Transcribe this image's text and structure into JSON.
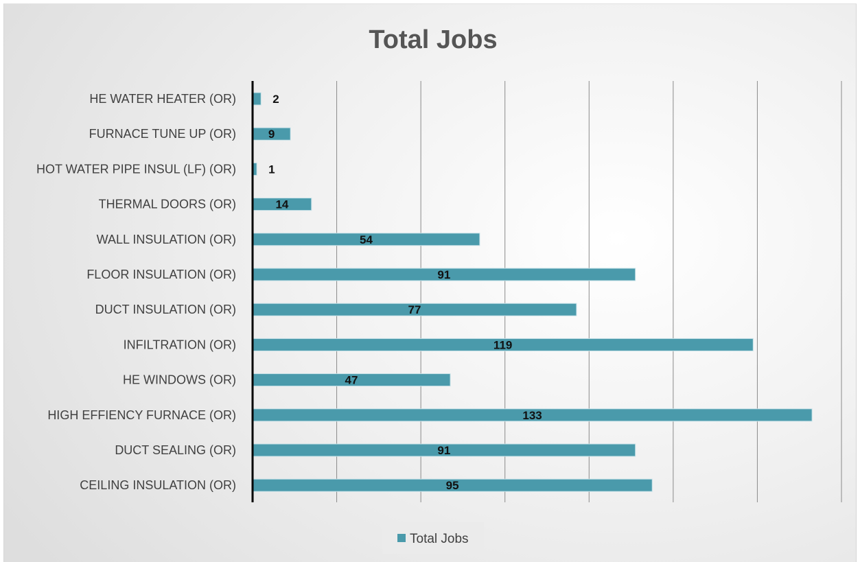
{
  "chart_data": {
    "type": "bar",
    "orientation": "horizontal",
    "title": "Total Jobs",
    "categories": [
      "HE WATER HEATER (OR)",
      "FURNACE TUNE UP (OR)",
      "HOT WATER PIPE INSUL (LF) (OR)",
      "THERMAL DOORS (OR)",
      "WALL INSULATION (OR)",
      "FLOOR INSULATION (OR)",
      "DUCT INSULATION (OR)",
      "INFILTRATION (OR)",
      "HE WINDOWS (OR)",
      "HIGH EFFIENCY FURNACE (OR)",
      "DUCT SEALING (OR)",
      "CEILING INSULATION (OR)"
    ],
    "series": [
      {
        "name": "Total Jobs",
        "values": [
          2,
          9,
          1,
          14,
          54,
          91,
          77,
          119,
          47,
          133,
          91,
          95
        ],
        "color": "#4a9aab"
      }
    ],
    "xlim": [
      0,
      140
    ],
    "x_gridline_step": 20,
    "x_tick_labels_shown": false,
    "grid": true,
    "data_labels": true,
    "legend": "bottom"
  },
  "colors": {
    "bar": "#4a9aab",
    "bar_edge": "#c7e2e8",
    "gridline": "#8a8a8a",
    "axis": "#000000"
  }
}
